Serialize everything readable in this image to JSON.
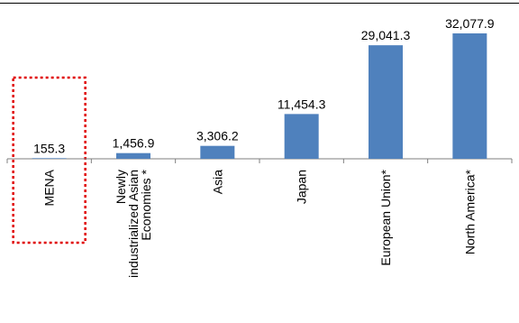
{
  "chart_data": {
    "type": "bar",
    "title": "",
    "xlabel": "",
    "ylabel": "",
    "categories": [
      "MENA",
      "Newly industrialized Asian Economies *",
      "Asia",
      "Japan",
      "European Union*",
      "North America*"
    ],
    "category_lines": [
      [
        "MENA"
      ],
      [
        "Newly",
        "industrialized  Asian",
        "Economies *"
      ],
      [
        "Asia"
      ],
      [
        "Japan"
      ],
      [
        "European Union*"
      ],
      [
        "North America*"
      ]
    ],
    "values": [
      155.3,
      1456.9,
      3306.2,
      11454.3,
      29041.3,
      32077.9
    ],
    "value_labels": [
      "155.3",
      "1,456.9",
      "3,306.2",
      "11,454.3",
      "29,041.3",
      "32,077.9"
    ],
    "ylim": [
      0,
      32077.9
    ],
    "grid": false,
    "highlight": "MENA",
    "colors": {
      "bar": "#4f81bd",
      "highlight_box": "#e00000",
      "axis": "#7f7f7f",
      "text": "#000000"
    }
  }
}
